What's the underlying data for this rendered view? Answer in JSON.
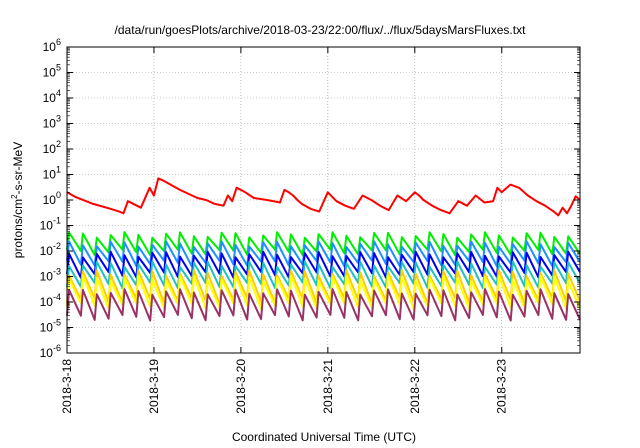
{
  "chart_data": {
    "type": "line",
    "title": "/data/run/goesPlots/archive/2018-03-23/22:00/flux/../flux/5daysMarsFluxes.txt",
    "xlabel": "Coordinated Universal Time (UTC)",
    "ylabel": {
      "prefix": "protons/cm",
      "sup": "2",
      "suffix": "-s-sr-MeV"
    },
    "yscale": "log",
    "ylim_exp": [
      -6,
      6
    ],
    "y_tick_labels": [
      {
        "base": "10",
        "exp": "6"
      },
      {
        "base": "10",
        "exp": "5"
      },
      {
        "base": "10",
        "exp": "4"
      },
      {
        "base": "10",
        "exp": "3"
      },
      {
        "base": "10",
        "exp": "2"
      },
      {
        "base": "10",
        "exp": "1"
      },
      {
        "base": "10",
        "exp": "0"
      },
      {
        "base": "10",
        "exp": "-1"
      },
      {
        "base": "10",
        "exp": "-2"
      },
      {
        "base": "10",
        "exp": "-3"
      },
      {
        "base": "10",
        "exp": "-4"
      },
      {
        "base": "10",
        "exp": "-5"
      },
      {
        "base": "10",
        "exp": "-6"
      }
    ],
    "xlim_days": [
      0,
      5.9
    ],
    "x_ticks": [
      {
        "day": 0,
        "label": "2018-3-18"
      },
      {
        "day": 1,
        "label": "2018-3-19"
      },
      {
        "day": 2,
        "label": "2018-3-20"
      },
      {
        "day": 3,
        "label": "2018-3-21"
      },
      {
        "day": 4,
        "label": "2018-3-22"
      },
      {
        "day": 5,
        "label": "2018-3-23"
      }
    ],
    "grid": true,
    "series": [
      {
        "color": "#ff0000",
        "x": [
          0.0,
          0.1,
          0.3,
          0.5,
          0.6,
          0.65,
          0.7,
          0.85,
          0.95,
          1.0,
          1.05,
          1.1,
          1.3,
          1.5,
          1.6,
          1.7,
          1.8,
          1.85,
          1.9,
          1.95,
          2.0,
          2.05,
          2.15,
          2.3,
          2.45,
          2.5,
          2.55,
          2.6,
          2.65,
          2.7,
          2.8,
          2.9,
          3.0,
          3.1,
          3.2,
          3.3,
          3.4,
          3.5,
          3.6,
          3.7,
          3.8,
          3.9,
          4.0,
          4.05,
          4.1,
          4.2,
          4.3,
          4.4,
          4.5,
          4.6,
          4.7,
          4.8,
          4.9,
          4.95,
          5.0,
          5.1,
          5.2,
          5.3,
          5.4,
          5.5,
          5.55,
          5.6,
          5.65,
          5.7,
          5.75,
          5.8,
          5.85,
          5.9
        ],
        "y": [
          2.0,
          1.3,
          0.7,
          0.45,
          0.35,
          0.3,
          0.9,
          0.5,
          3.0,
          1.5,
          7.0,
          6.0,
          2.5,
          1.2,
          1.0,
          0.7,
          0.6,
          1.5,
          0.9,
          3.0,
          2.5,
          2.0,
          1.2,
          1.0,
          0.8,
          2.5,
          2.0,
          1.5,
          1.0,
          0.7,
          0.45,
          0.35,
          2.0,
          0.9,
          0.6,
          0.45,
          1.5,
          1.0,
          0.6,
          0.4,
          1.5,
          0.9,
          2.0,
          1.5,
          1.0,
          0.6,
          0.4,
          0.3,
          0.9,
          0.6,
          1.5,
          0.8,
          0.9,
          3.0,
          2.0,
          4.0,
          3.0,
          1.5,
          0.9,
          0.6,
          0.45,
          0.35,
          0.25,
          0.5,
          0.3,
          0.6,
          1.4,
          1.0
        ]
      },
      {
        "color": "#00ee00",
        "base": 0.02,
        "amp": 2.2,
        "cycles": 37
      },
      {
        "color": "#1e90ff",
        "base": 0.008,
        "amp": 2.4,
        "cycles": 37
      },
      {
        "color": "#0000ee",
        "base": 0.003,
        "amp": 2.5,
        "cycles": 37
      },
      {
        "color": "#20c0c0",
        "base": 0.0012,
        "amp": 2.6,
        "cycles": 37
      },
      {
        "color": "#ffcc00",
        "base": 0.0004,
        "amp": 3.5,
        "cycles": 37
      },
      {
        "color": "#ffff00",
        "base": 0.00025,
        "amp": 3.5,
        "cycles": 37
      },
      {
        "color": "#993366",
        "base": 8e-05,
        "amp": 3.2,
        "cycles": 37
      }
    ]
  }
}
